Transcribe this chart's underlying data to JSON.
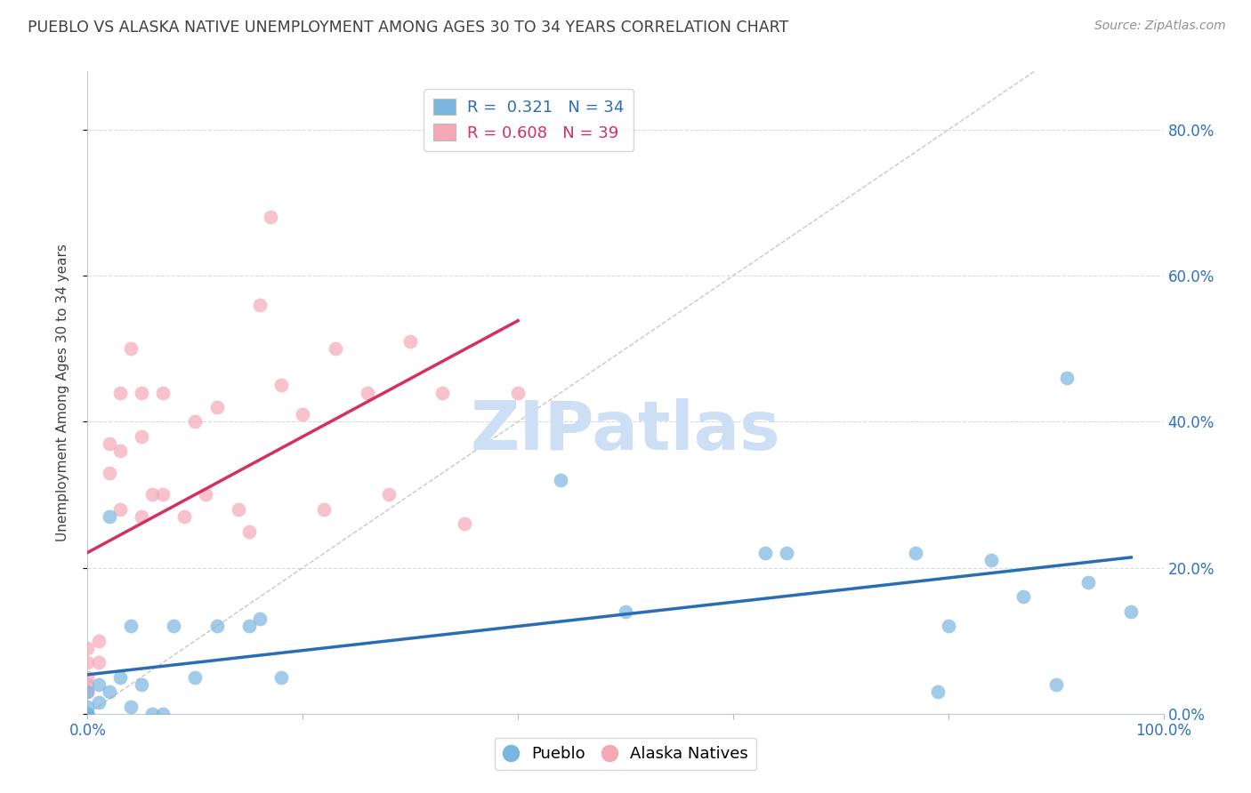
{
  "title": "PUEBLO VS ALASKA NATIVE UNEMPLOYMENT AMONG AGES 30 TO 34 YEARS CORRELATION CHART",
  "source": "Source: ZipAtlas.com",
  "ylabel": "Unemployment Among Ages 30 to 34 years",
  "xlim": [
    0,
    1.0
  ],
  "ylim": [
    0,
    0.88
  ],
  "xticks": [
    0.0,
    0.2,
    0.4,
    0.6,
    0.8,
    1.0
  ],
  "yticks": [
    0.0,
    0.2,
    0.4,
    0.6,
    0.8
  ],
  "xticklabels": [
    "0.0%",
    "",
    "",
    "",
    "",
    "100.0%"
  ],
  "pueblo_color": "#7ab5df",
  "alaska_color": "#f5a8b8",
  "pueblo_line_color": "#2a6db5",
  "alaska_line_color": "#d43060",
  "diagonal_color": "#c8c8c8",
  "pueblo_R": "0.321",
  "pueblo_N": "34",
  "alaska_R": "0.608",
  "alaska_N": "39",
  "pueblo_points": [
    [
      0.02,
      0.27
    ],
    [
      0.01,
      0.015
    ],
    [
      0.0,
      0.0
    ],
    [
      0.0,
      0.0
    ],
    [
      0.0,
      0.0
    ],
    [
      0.0,
      0.03
    ],
    [
      0.0,
      0.01
    ],
    [
      0.01,
      0.04
    ],
    [
      0.02,
      0.03
    ],
    [
      0.03,
      0.05
    ],
    [
      0.04,
      0.12
    ],
    [
      0.04,
      0.01
    ],
    [
      0.05,
      0.04
    ],
    [
      0.06,
      0.0
    ],
    [
      0.07,
      0.0
    ],
    [
      0.08,
      0.12
    ],
    [
      0.1,
      0.05
    ],
    [
      0.12,
      0.12
    ],
    [
      0.15,
      0.12
    ],
    [
      0.16,
      0.13
    ],
    [
      0.18,
      0.05
    ],
    [
      0.44,
      0.32
    ],
    [
      0.5,
      0.14
    ],
    [
      0.63,
      0.22
    ],
    [
      0.65,
      0.22
    ],
    [
      0.77,
      0.22
    ],
    [
      0.79,
      0.03
    ],
    [
      0.8,
      0.12
    ],
    [
      0.84,
      0.21
    ],
    [
      0.87,
      0.16
    ],
    [
      0.9,
      0.04
    ],
    [
      0.91,
      0.46
    ],
    [
      0.93,
      0.18
    ],
    [
      0.97,
      0.14
    ]
  ],
  "alaska_points": [
    [
      0.0,
      0.0
    ],
    [
      0.0,
      0.04
    ],
    [
      0.0,
      0.03
    ],
    [
      0.0,
      0.05
    ],
    [
      0.0,
      0.07
    ],
    [
      0.0,
      0.09
    ],
    [
      0.0,
      0.0
    ],
    [
      0.01,
      0.07
    ],
    [
      0.01,
      0.1
    ],
    [
      0.02,
      0.33
    ],
    [
      0.02,
      0.37
    ],
    [
      0.03,
      0.28
    ],
    [
      0.03,
      0.36
    ],
    [
      0.03,
      0.44
    ],
    [
      0.04,
      0.5
    ],
    [
      0.05,
      0.27
    ],
    [
      0.05,
      0.38
    ],
    [
      0.05,
      0.44
    ],
    [
      0.06,
      0.3
    ],
    [
      0.07,
      0.3
    ],
    [
      0.07,
      0.44
    ],
    [
      0.09,
      0.27
    ],
    [
      0.1,
      0.4
    ],
    [
      0.11,
      0.3
    ],
    [
      0.12,
      0.42
    ],
    [
      0.14,
      0.28
    ],
    [
      0.15,
      0.25
    ],
    [
      0.16,
      0.56
    ],
    [
      0.17,
      0.68
    ],
    [
      0.18,
      0.45
    ],
    [
      0.2,
      0.41
    ],
    [
      0.22,
      0.28
    ],
    [
      0.23,
      0.5
    ],
    [
      0.26,
      0.44
    ],
    [
      0.28,
      0.3
    ],
    [
      0.3,
      0.51
    ],
    [
      0.33,
      0.44
    ],
    [
      0.35,
      0.26
    ],
    [
      0.4,
      0.44
    ]
  ],
  "background_color": "#ffffff",
  "grid_color": "#d5dce8",
  "watermark_text": "ZIPatlas",
  "watermark_color": "#cddff5",
  "legend_facecolor": "#ffffff",
  "legend_edgecolor": "#cccccc"
}
